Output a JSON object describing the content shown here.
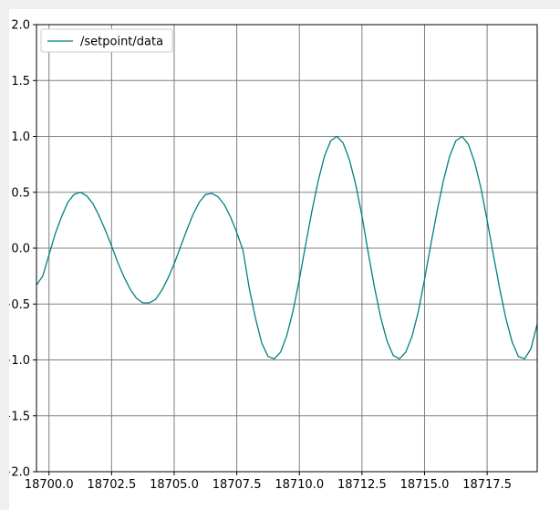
{
  "chart_data": {
    "type": "line",
    "title": "",
    "xlabel": "",
    "ylabel": "",
    "xlim": [
      18699.5,
      18719.5
    ],
    "ylim": [
      -2.0,
      2.0
    ],
    "xticks": [
      18700.0,
      18702.5,
      18705.0,
      18707.5,
      18710.0,
      18712.5,
      18715.0,
      18717.5
    ],
    "xtick_labels": [
      "18700.0",
      "18702.5",
      "18705.0",
      "18707.5",
      "18710.0",
      "18712.5",
      "18715.0",
      "18717.5"
    ],
    "yticks": [
      -2.0,
      -1.5,
      -1.0,
      -0.5,
      0.0,
      0.5,
      1.0,
      1.5,
      2.0
    ],
    "ytick_labels": [
      "−2.0",
      "−1.5",
      "−1.0",
      "−0.5",
      "0.0",
      "0.5",
      "1.0",
      "1.5",
      "2.0"
    ],
    "grid": true,
    "legend_position": "top-left",
    "series": [
      {
        "name": "/setpoint/data",
        "color": "#008080",
        "points": [
          [
            18699.5,
            -0.33
          ],
          [
            18699.75,
            -0.25
          ],
          [
            18700.0,
            -0.06
          ],
          [
            18700.25,
            0.13
          ],
          [
            18700.5,
            0.28
          ],
          [
            18700.75,
            0.41
          ],
          [
            18701.0,
            0.48
          ],
          [
            18701.25,
            0.5
          ],
          [
            18701.5,
            0.47
          ],
          [
            18701.75,
            0.4
          ],
          [
            18702.0,
            0.29
          ],
          [
            18702.25,
            0.16
          ],
          [
            18702.5,
            0.02
          ],
          [
            18702.75,
            -0.13
          ],
          [
            18703.0,
            -0.26
          ],
          [
            18703.25,
            -0.37
          ],
          [
            18703.5,
            -0.45
          ],
          [
            18703.75,
            -0.49
          ],
          [
            18704.0,
            -0.49
          ],
          [
            18704.25,
            -0.46
          ],
          [
            18704.5,
            -0.38
          ],
          [
            18704.75,
            -0.27
          ],
          [
            18705.0,
            -0.14
          ],
          [
            18705.25,
            0.01
          ],
          [
            18705.5,
            0.16
          ],
          [
            18705.75,
            0.3
          ],
          [
            18706.0,
            0.41
          ],
          [
            18706.25,
            0.48
          ],
          [
            18706.5,
            0.49
          ],
          [
            18706.75,
            0.46
          ],
          [
            18707.0,
            0.39
          ],
          [
            18707.25,
            0.28
          ],
          [
            18707.5,
            0.14
          ],
          [
            18707.75,
            -0.02
          ],
          [
            18708.0,
            -0.36
          ],
          [
            18708.25,
            -0.63
          ],
          [
            18708.5,
            -0.85
          ],
          [
            18708.75,
            -0.97
          ],
          [
            18709.0,
            -0.99
          ],
          [
            18709.25,
            -0.93
          ],
          [
            18709.5,
            -0.78
          ],
          [
            18709.75,
            -0.56
          ],
          [
            18710.0,
            -0.28
          ],
          [
            18710.25,
            0.03
          ],
          [
            18710.5,
            0.33
          ],
          [
            18710.75,
            0.6
          ],
          [
            18711.0,
            0.82
          ],
          [
            18711.25,
            0.96
          ],
          [
            18711.5,
            1.0
          ],
          [
            18711.75,
            0.94
          ],
          [
            18712.0,
            0.79
          ],
          [
            18712.25,
            0.57
          ],
          [
            18712.5,
            0.29
          ],
          [
            18712.75,
            -0.04
          ],
          [
            18713.0,
            -0.35
          ],
          [
            18713.25,
            -0.62
          ],
          [
            18713.5,
            -0.83
          ],
          [
            18713.75,
            -0.96
          ],
          [
            18714.0,
            -0.99
          ],
          [
            18714.25,
            -0.93
          ],
          [
            18714.5,
            -0.79
          ],
          [
            18714.75,
            -0.57
          ],
          [
            18715.0,
            -0.28
          ],
          [
            18715.25,
            0.03
          ],
          [
            18715.5,
            0.33
          ],
          [
            18715.75,
            0.6
          ],
          [
            18716.0,
            0.82
          ],
          [
            18716.25,
            0.96
          ],
          [
            18716.5,
            1.0
          ],
          [
            18716.75,
            0.93
          ],
          [
            18717.0,
            0.77
          ],
          [
            18717.25,
            0.54
          ],
          [
            18717.5,
            0.25
          ],
          [
            18717.75,
            -0.06
          ],
          [
            18718.0,
            -0.36
          ],
          [
            18718.25,
            -0.63
          ],
          [
            18718.5,
            -0.84
          ],
          [
            18718.75,
            -0.97
          ],
          [
            18719.0,
            -0.99
          ],
          [
            18719.25,
            -0.9
          ],
          [
            18719.5,
            -0.68
          ]
        ]
      }
    ]
  }
}
